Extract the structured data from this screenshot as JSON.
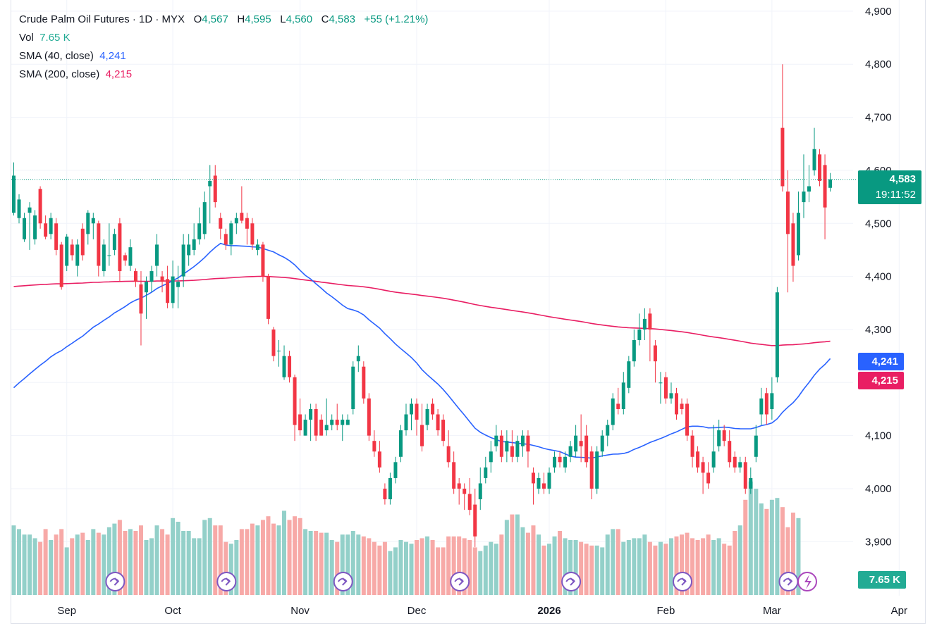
{
  "legend": {
    "symbol": "Crude Palm Oil Futures · 1D · MYX",
    "o_label": "O",
    "o_value": "4,567",
    "h_label": "H",
    "h_value": "4,595",
    "l_label": "L",
    "l_value": "4,560",
    "c_label": "C",
    "c_value": "4,583",
    "change": "+55 (+1.21%)",
    "vol_label": "Vol",
    "vol_value": "7.65 K",
    "sma40_label": "SMA (40, close)",
    "sma40_value": "4,241",
    "sma200_label": "SMA (200, close)",
    "sma200_value": "4,215"
  },
  "price_tag": {
    "price": "4,583",
    "countdown": "19:11:52"
  },
  "sma40_tag": "4,241",
  "sma200_tag": "4,215",
  "vol_tag": "7.65 K",
  "colors": {
    "up": "#089981",
    "down": "#f23645",
    "vol_up": "#93d0c9",
    "vol_down": "#f7a9a7",
    "sma40": "#2962ff",
    "sma200": "#e91e63",
    "grid": "#f0f3fa",
    "text": "#131722",
    "event": "#7e57c2"
  },
  "chart_data": {
    "type": "candlestick",
    "title": "Crude Palm Oil Futures · 1D · MYX",
    "y_axis_ticks": [
      3900,
      4000,
      4100,
      4200,
      4300,
      4400,
      4500,
      4600,
      4700,
      4800,
      4900
    ],
    "y_axis_labels": [
      "3,900",
      "4,000",
      "4,100",
      "4,200",
      "4,300",
      "4,400",
      "4,500",
      "4,600",
      "4,700",
      "4,800",
      "4,900"
    ],
    "x_axis_labels": [
      "Sep",
      "Oct",
      "Nov",
      "Dec",
      "2026",
      "Feb",
      "Mar",
      "Apr"
    ],
    "x_axis_label_index": [
      10,
      30,
      54,
      76,
      101,
      123,
      143,
      167
    ],
    "candles": [
      [
        4520,
        4590,
        4615,
        4515
      ],
      [
        4510,
        4545,
        4555,
        4500
      ],
      [
        4470,
        4510,
        4520,
        4465
      ],
      [
        4520,
        4530,
        4540,
        4450
      ],
      [
        4470,
        4515,
        4525,
        4460
      ],
      [
        4565,
        4500,
        4570,
        4490
      ],
      [
        4500,
        4475,
        4515,
        4470
      ],
      [
        4480,
        4510,
        4520,
        4470
      ],
      [
        4500,
        4450,
        4510,
        4440
      ],
      [
        4460,
        4380,
        4465,
        4375
      ],
      [
        4420,
        4475,
        4480,
        4410
      ],
      [
        4460,
        4440,
        4470,
        4430
      ],
      [
        4420,
        4460,
        4470,
        4400
      ],
      [
        4490,
        4440,
        4500,
        4430
      ],
      [
        4480,
        4520,
        4525,
        4460
      ],
      [
        4500,
        4510,
        4520,
        4470
      ],
      [
        4500,
        4420,
        4505,
        4400
      ],
      [
        4410,
        4460,
        4470,
        4400
      ],
      [
        4440,
        4440,
        4500,
        4420
      ],
      [
        4450,
        4480,
        4490,
        4440
      ],
      [
        4500,
        4410,
        4510,
        4390
      ],
      [
        4440,
        4430,
        4445,
        4420
      ],
      [
        4420,
        4455,
        4470,
        4410
      ],
      [
        4410,
        4390,
        4415,
        4380
      ],
      [
        4385,
        4330,
        4410,
        4270
      ],
      [
        4370,
        4390,
        4400,
        4320
      ],
      [
        4390,
        4410,
        4420,
        4370
      ],
      [
        4420,
        4460,
        4480,
        4400
      ],
      [
        4400,
        4390,
        4410,
        4370
      ],
      [
        4395,
        4350,
        4420,
        4340
      ],
      [
        4350,
        4400,
        4430,
        4340
      ],
      [
        4380,
        4390,
        4420,
        4340
      ],
      [
        4400,
        4460,
        4480,
        4380
      ],
      [
        4440,
        4460,
        4480,
        4420
      ],
      [
        4450,
        4470,
        4500,
        4440
      ],
      [
        4470,
        4500,
        4530,
        4460
      ],
      [
        4480,
        4540,
        4560,
        4470
      ],
      [
        4570,
        4580,
        4610,
        4500
      ],
      [
        4590,
        4540,
        4610,
        4530
      ],
      [
        4510,
        4490,
        4520,
        4470
      ],
      [
        4480,
        4460,
        4490,
        4450
      ],
      [
        4460,
        4500,
        4505,
        4440
      ],
      [
        4500,
        4510,
        4520,
        4480
      ],
      [
        4520,
        4505,
        4570,
        4500
      ],
      [
        4510,
        4490,
        4520,
        4460
      ],
      [
        4500,
        4460,
        4510,
        4450
      ],
      [
        4450,
        4460,
        4470,
        4440
      ],
      [
        4460,
        4400,
        4465,
        4390
      ],
      [
        4400,
        4320,
        4405,
        4310
      ],
      [
        4300,
        4250,
        4305,
        4240
      ],
      [
        4260,
        4260,
        4280,
        4230
      ],
      [
        4210,
        4250,
        4270,
        4205
      ],
      [
        4250,
        4210,
        4260,
        4200
      ],
      [
        4210,
        4120,
        4215,
        4090
      ],
      [
        4140,
        4110,
        4170,
        4100
      ],
      [
        4100,
        4130,
        4140,
        4100
      ],
      [
        4130,
        4150,
        4160,
        4090
      ],
      [
        4150,
        4100,
        4160,
        4090
      ],
      [
        4130,
        4100,
        4140,
        4100
      ],
      [
        4110,
        4120,
        4170,
        4100
      ],
      [
        4120,
        4130,
        4140,
        4110
      ],
      [
        4130,
        4120,
        4160,
        4110
      ],
      [
        4120,
        4130,
        4140,
        4090
      ],
      [
        4120,
        4130,
        4140,
        4120
      ],
      [
        4150,
        4230,
        4240,
        4140
      ],
      [
        4240,
        4250,
        4270,
        4220
      ],
      [
        4230,
        4170,
        4240,
        4160
      ],
      [
        4170,
        4100,
        4180,
        4090
      ],
      [
        4090,
        4070,
        4110,
        4060
      ],
      [
        4070,
        4040,
        4090,
        4030
      ],
      [
        4000,
        3980,
        4010,
        3970
      ],
      [
        3980,
        4020,
        4030,
        3970
      ],
      [
        4020,
        4050,
        4060,
        4010
      ],
      [
        4060,
        4110,
        4120,
        4050
      ],
      [
        4110,
        4140,
        4160,
        4100
      ],
      [
        4140,
        4160,
        4170,
        4110
      ],
      [
        4160,
        4130,
        4170,
        4100
      ],
      [
        4120,
        4080,
        4160,
        4070
      ],
      [
        4120,
        4150,
        4160,
        4110
      ],
      [
        4160,
        4140,
        4170,
        4130
      ],
      [
        4140,
        4110,
        4150,
        4100
      ],
      [
        4130,
        4090,
        4140,
        4080
      ],
      [
        4080,
        4050,
        4110,
        4040
      ],
      [
        4050,
        4000,
        4070,
        3990
      ],
      [
        4010,
        4000,
        4020,
        3970
      ],
      [
        4000,
        3990,
        4010,
        3960
      ],
      [
        3990,
        3960,
        4020,
        3950
      ],
      [
        3970,
        3910,
        4000,
        3890
      ],
      [
        3980,
        4010,
        4040,
        3960
      ],
      [
        4020,
        4040,
        4060,
        4010
      ],
      [
        4050,
        4070,
        4090,
        4030
      ],
      [
        4080,
        4100,
        4120,
        4070
      ],
      [
        4100,
        4060,
        4110,
        4050
      ],
      [
        4070,
        4090,
        4110,
        4050
      ],
      [
        4080,
        4060,
        4110,
        4050
      ],
      [
        4060,
        4090,
        4100,
        4050
      ],
      [
        4080,
        4100,
        4110,
        4060
      ],
      [
        4100,
        4070,
        4110,
        4040
      ],
      [
        4030,
        4010,
        4040,
        3970
      ],
      [
        4000,
        4020,
        4030,
        3990
      ],
      [
        4010,
        4000,
        4030,
        3990
      ],
      [
        4000,
        4030,
        4040,
        3990
      ],
      [
        4040,
        4060,
        4070,
        4030
      ],
      [
        4060,
        4050,
        4070,
        4040
      ],
      [
        4040,
        4060,
        4070,
        4030
      ],
      [
        4060,
        4080,
        4090,
        4050
      ],
      [
        4070,
        4100,
        4120,
        4060
      ],
      [
        4090,
        4080,
        4140,
        4050
      ],
      [
        4100,
        4050,
        4120,
        4040
      ],
      [
        4070,
        4000,
        4080,
        3980
      ],
      [
        4000,
        4070,
        4080,
        3990
      ],
      [
        4070,
        4100,
        4110,
        4060
      ],
      [
        4100,
        4120,
        4130,
        4080
      ],
      [
        4120,
        4170,
        4180,
        4110
      ],
      [
        4160,
        4150,
        4190,
        4140
      ],
      [
        4150,
        4200,
        4220,
        4140
      ],
      [
        4190,
        4240,
        4250,
        4180
      ],
      [
        4240,
        4280,
        4300,
        4230
      ],
      [
        4280,
        4300,
        4330,
        4270
      ],
      [
        4300,
        4320,
        4340,
        4280
      ],
      [
        4330,
        4300,
        4340,
        4240
      ],
      [
        4270,
        4240,
        4280,
        4200
      ],
      [
        4200,
        4200,
        4220,
        4160
      ],
      [
        4210,
        4170,
        4220,
        4160
      ],
      [
        4170,
        4180,
        4200,
        4160
      ],
      [
        4180,
        4140,
        4190,
        4130
      ],
      [
        4160,
        4150,
        4170,
        4140
      ],
      [
        4160,
        4100,
        4170,
        4090
      ],
      [
        4100,
        4060,
        4110,
        4040
      ],
      [
        4070,
        4040,
        4080,
        4030
      ],
      [
        4050,
        4030,
        4060,
        3990
      ],
      [
        4030,
        4010,
        4050,
        4000
      ],
      [
        4040,
        4070,
        4120,
        4030
      ],
      [
        4080,
        4110,
        4130,
        4070
      ],
      [
        4110,
        4090,
        4120,
        4080
      ],
      [
        4090,
        4050,
        4110,
        4040
      ],
      [
        4060,
        4040,
        4070,
        4030
      ],
      [
        4040,
        4050,
        4060,
        4030
      ],
      [
        4050,
        4000,
        4060,
        3990
      ],
      [
        4000,
        4020,
        4040,
        3990
      ],
      [
        4060,
        4100,
        4120,
        4050
      ],
      [
        4140,
        4170,
        4190,
        4120
      ],
      [
        4180,
        4140,
        4190,
        4120
      ],
      [
        4150,
        4180,
        4210,
        4130
      ],
      [
        4210,
        4370,
        4380,
        4200
      ],
      [
        4680,
        4570,
        4800,
        4560
      ],
      [
        4560,
        4480,
        4600,
        4370
      ],
      [
        4500,
        4420,
        4520,
        4390
      ],
      [
        4440,
        4520,
        4560,
        4430
      ],
      [
        4540,
        4560,
        4630,
        4510
      ],
      [
        4560,
        4570,
        4610,
        4540
      ],
      [
        4600,
        4640,
        4680,
        4590
      ],
      [
        4630,
        4580,
        4640,
        4570
      ],
      [
        4610,
        4530,
        4630,
        4470
      ],
      [
        4567,
        4583,
        4595,
        4560
      ]
    ],
    "volume": [
      38,
      36,
      33,
      33,
      31,
      29,
      36,
      30,
      33,
      36,
      26,
      31,
      33,
      34,
      30,
      36,
      34,
      33,
      37,
      39,
      41,
      35,
      36,
      35,
      38,
      30,
      31,
      38,
      36,
      33,
      42,
      40,
      35,
      35,
      31,
      31,
      41,
      42,
      38,
      38,
      29,
      28,
      30,
      36,
      36,
      39,
      38,
      41,
      43,
      39,
      38,
      46,
      41,
      43,
      42,
      36,
      35,
      35,
      34,
      34,
      30,
      29,
      33,
      33,
      35,
      33,
      32,
      31,
      29,
      27,
      29,
      24,
      26,
      30,
      29,
      28,
      30,
      31,
      32,
      30,
      26,
      26,
      32,
      32,
      32,
      31,
      30,
      26,
      24,
      27,
      29,
      28,
      33,
      41,
      44,
      44,
      37,
      34,
      38,
      33,
      27,
      28,
      32,
      35,
      31,
      30,
      30,
      29,
      28,
      27,
      27,
      26,
      33,
      36,
      36,
      29,
      30,
      31,
      31,
      33,
      29,
      27,
      29,
      28,
      31,
      32,
      33,
      34,
      31,
      30,
      31,
      33,
      30,
      31,
      28,
      27,
      35,
      38,
      52,
      62,
      58,
      50,
      47,
      52,
      53,
      48,
      37,
      45,
      42
    ]
  }
}
